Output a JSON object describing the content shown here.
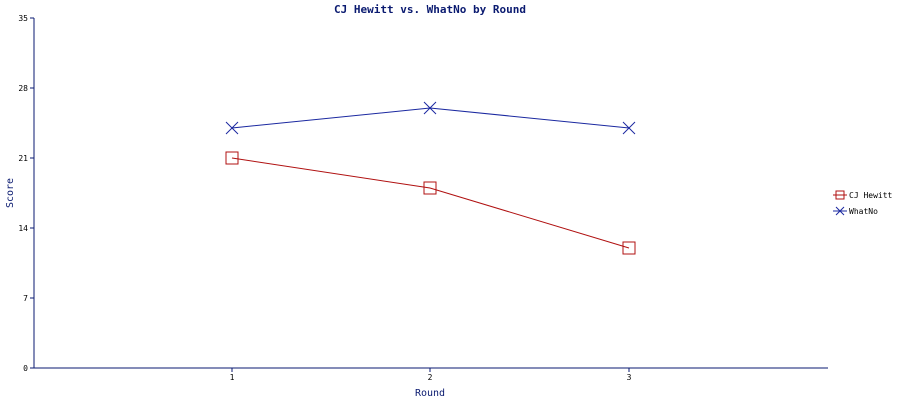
{
  "chart_data": {
    "type": "line",
    "title": "CJ Hewitt vs. WhatNo by Round",
    "xlabel": "Round",
    "ylabel": "Score",
    "x": [
      1,
      2,
      3
    ],
    "ylim": [
      0,
      35
    ],
    "yticks": [
      0,
      7,
      14,
      21,
      28,
      35
    ],
    "grid": false,
    "legend_position": "right",
    "axis_color": "#0a1a70",
    "series": [
      {
        "name": "CJ Hewitt",
        "values": [
          21,
          18,
          12
        ],
        "color": "#b01010",
        "marker": "square"
      },
      {
        "name": "WhatNo",
        "values": [
          24,
          26,
          24
        ],
        "color": "#1a28a0",
        "marker": "x"
      }
    ]
  }
}
